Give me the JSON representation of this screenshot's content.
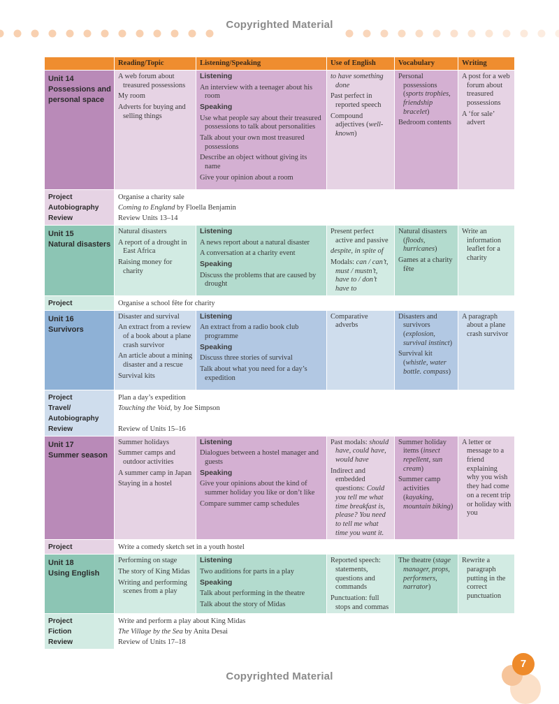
{
  "watermark": "Copyrighted Material",
  "headers": [
    "Reading/Topic",
    "Listening/Speaking",
    "Use of English",
    "Vocabulary",
    "Writing"
  ],
  "page_number": "7",
  "colors": {
    "header": "#ef8d2f",
    "purple_dark": "#b98ab8",
    "purple_mid": "#d4b0d2",
    "purple_light": "#e6d3e4",
    "green_dark": "#8cc5b4",
    "green_mid": "#b3dbce",
    "green_light": "#d2ebe3",
    "blue_dark": "#8eb1d6",
    "blue_mid": "#b2c8e3",
    "blue_light": "#cfdded"
  },
  "units": [
    {
      "name": [
        "Unit 14",
        "Possessions and",
        "personal space"
      ],
      "reading": [
        "A web forum about treasured possessions",
        "My room",
        "Adverts for buying and selling things"
      ],
      "listening_label": "Listening",
      "listening": [
        "An interview with a teenager about his room"
      ],
      "speaking_label": "Speaking",
      "speaking": [
        "Use what people say about their treasured possessions to talk about personalities",
        "Talk about your own most treasured possessions",
        "Describe an object without giving its name",
        "Give your opinion about a room"
      ],
      "english": [
        {
          "parts": [
            {
              "t": "to have something done",
              "i": true
            }
          ]
        },
        {
          "parts": [
            {
              "t": "Past perfect in reported speech",
              "i": false
            }
          ]
        },
        {
          "parts": [
            {
              "t": "Compound adjectives (",
              "i": false
            },
            {
              "t": "well-known",
              "i": true
            },
            {
              "t": ")",
              "i": false
            }
          ]
        }
      ],
      "vocab": [
        {
          "parts": [
            {
              "t": "Personal possessions (",
              "i": false
            },
            {
              "t": "sports trophies, friendship bracelet",
              "i": true
            },
            {
              "t": ")",
              "i": false
            }
          ]
        },
        {
          "parts": [
            {
              "t": "Bedroom contents",
              "i": false
            }
          ]
        }
      ],
      "writing": [
        "A post for a web forum about treasured possessions",
        "A ‘for sale’ advert"
      ],
      "project_labels": [
        "Project",
        "Autobiography",
        "Review"
      ],
      "project_lines": [
        {
          "parts": [
            {
              "t": "Organise a charity sale",
              "i": false
            }
          ]
        },
        {
          "parts": [
            {
              "t": "Coming to England",
              "i": true
            },
            {
              "t": " by Floella Benjamin",
              "i": false
            }
          ]
        },
        {
          "parts": [
            {
              "t": "Review Units 13–14",
              "i": false
            }
          ]
        }
      ]
    },
    {
      "name": [
        "Unit 15",
        "Natural disasters"
      ],
      "reading": [
        "Natural disasters",
        "A report of a drought in East Africa",
        "Raising money for charity"
      ],
      "listening_label": "Listening",
      "listening": [
        "A news report about a natural disaster",
        "A conversation at a charity event"
      ],
      "speaking_label": "Speaking",
      "speaking": [
        "Discuss the problems that are caused by drought"
      ],
      "english": [
        {
          "parts": [
            {
              "t": "Present perfect active and passive",
              "i": false
            }
          ]
        },
        {
          "parts": [
            {
              "t": "despite, in spite of",
              "i": true
            }
          ]
        },
        {
          "parts": [
            {
              "t": "Modals: ",
              "i": false
            },
            {
              "t": "can / can’t, must / mustn’t, have to / don’t have to",
              "i": true
            }
          ]
        }
      ],
      "vocab": [
        {
          "parts": [
            {
              "t": "Natural disasters (",
              "i": false
            },
            {
              "t": "floods, hurricanes",
              "i": true
            },
            {
              "t": ")",
              "i": false
            }
          ]
        },
        {
          "parts": [
            {
              "t": "Games at a charity fête",
              "i": false
            }
          ]
        }
      ],
      "writing": [
        "Write an information leaflet for a charity"
      ],
      "project_labels": [
        "Project"
      ],
      "project_lines": [
        {
          "parts": [
            {
              "t": "Organise a school fête for charity",
              "i": false
            }
          ]
        }
      ]
    },
    {
      "name": [
        "Unit 16",
        "Survivors"
      ],
      "reading": [
        "Disaster and survival",
        "An extract from a review of a book about a plane crash survivor",
        "An article about a mining disaster and a rescue",
        "Survival kits"
      ],
      "listening_label": "Listening",
      "listening": [
        "An extract from a radio book club programme"
      ],
      "speaking_label": "Speaking",
      "speaking": [
        "Discuss three stories of survival",
        "Talk about what you need for a day’s expedition"
      ],
      "english": [
        {
          "parts": [
            {
              "t": "Comparative adverbs",
              "i": false
            }
          ]
        }
      ],
      "vocab": [
        {
          "parts": [
            {
              "t": "Disasters and survivors (",
              "i": false
            },
            {
              "t": "explosion, survival instinct",
              "i": true
            },
            {
              "t": ")",
              "i": false
            }
          ]
        },
        {
          "parts": [
            {
              "t": "Survival kit (",
              "i": false
            },
            {
              "t": "whistle, water bottle. compass",
              "i": true
            },
            {
              "t": ")",
              "i": false
            }
          ]
        }
      ],
      "writing": [
        "A paragraph about a plane crash survivor"
      ],
      "project_labels": [
        "Project",
        "Travel/",
        "Autobiography",
        "Review"
      ],
      "project_lines": [
        {
          "parts": [
            {
              "t": "Plan a day’s expedition",
              "i": false
            }
          ]
        },
        {
          "parts": [
            {
              "t": "Touching the Void",
              "i": true
            },
            {
              "t": ", by Joe Simpson",
              "i": false
            }
          ]
        },
        {
          "parts": [
            {
              "t": "",
              "i": false
            }
          ]
        },
        {
          "parts": [
            {
              "t": "Review of Units 15–16",
              "i": false
            }
          ]
        }
      ]
    },
    {
      "name": [
        "Unit 17",
        "Summer season"
      ],
      "reading": [
        "Summer holidays",
        "Summer camps and outdoor activities",
        "A summer camp in Japan",
        "Staying in a hostel"
      ],
      "listening_label": "Listening",
      "listening": [
        "Dialogues between a hostel manager and guests"
      ],
      "speaking_label": "Speaking",
      "speaking": [
        "Give your opinions about the kind of summer holiday you like or don’t like",
        "Compare summer camp schedules"
      ],
      "english": [
        {
          "parts": [
            {
              "t": "Past modals: ",
              "i": false
            },
            {
              "t": "should have, could have, would have",
              "i": true
            }
          ]
        },
        {
          "parts": [
            {
              "t": "Indirect and embedded questions: ",
              "i": false
            },
            {
              "t": "Could you tell me what time breakfast is, please? You need to tell me what time you want it.",
              "i": true
            }
          ]
        }
      ],
      "vocab": [
        {
          "parts": [
            {
              "t": "Summer holiday items (",
              "i": false
            },
            {
              "t": "insect repellent, sun cream",
              "i": true
            },
            {
              "t": ")",
              "i": false
            }
          ]
        },
        {
          "parts": [
            {
              "t": "Summer camp activities (",
              "i": false
            },
            {
              "t": "kayaking, mountain biking",
              "i": true
            },
            {
              "t": ")",
              "i": false
            }
          ]
        }
      ],
      "writing": [
        "A letter or message to a friend explaining why you wish they had come on a recent trip or holiday with you"
      ],
      "project_labels": [
        "Project"
      ],
      "project_lines": [
        {
          "parts": [
            {
              "t": "Write a comedy sketch set in a youth hostel",
              "i": false
            }
          ]
        }
      ]
    },
    {
      "name": [
        "Unit 18",
        "Using English"
      ],
      "reading": [
        "Performing on stage",
        "The story of King Midas",
        "Writing and performing scenes from a play"
      ],
      "listening_label": "Listening",
      "listening": [
        "Two auditions for parts in a play"
      ],
      "speaking_label": "Speaking",
      "speaking": [
        "Talk about performing in the theatre",
        "Talk about the story of Midas"
      ],
      "english": [
        {
          "parts": [
            {
              "t": "Reported speech: statements, questions and commands",
              "i": false
            }
          ]
        },
        {
          "parts": [
            {
              "t": "Punctuation: full stops and commas",
              "i": false
            }
          ]
        }
      ],
      "vocab": [
        {
          "parts": [
            {
              "t": "The theatre (",
              "i": false
            },
            {
              "t": "stage manager, props, performers, narrator",
              "i": true
            },
            {
              "t": ")",
              "i": false
            }
          ]
        }
      ],
      "writing": [
        "Rewrite a paragraph putting in the correct punctuation"
      ],
      "project_labels": [
        "Project",
        "Fiction",
        "Review"
      ],
      "project_lines": [
        {
          "parts": [
            {
              "t": "Write and perform a play about King Midas",
              "i": false
            }
          ]
        },
        {
          "parts": [
            {
              "t": "The Village by the Sea",
              "i": true
            },
            {
              "t": " by Anita Desai",
              "i": false
            }
          ]
        },
        {
          "parts": [
            {
              "t": "Review of Units 17–18",
              "i": false
            }
          ]
        }
      ]
    }
  ]
}
